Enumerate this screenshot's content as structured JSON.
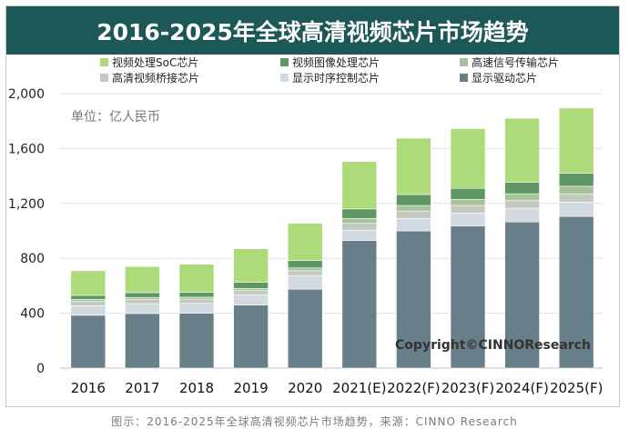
{
  "chart_data": {
    "type": "bar",
    "stacked": true,
    "title": "2016-2025年全球高清视频芯片市场趋势",
    "unit_label": "单位：亿人民币",
    "watermark": "Copyright©CINNOResearch",
    "categories": [
      "2016",
      "2017",
      "2018",
      "2019",
      "2020",
      "2021(E)",
      "2022(F)",
      "2023(F)",
      "2024(F)",
      "2025(F)"
    ],
    "ylim": [
      0,
      2000
    ],
    "yticks": [
      "0",
      "400",
      "800",
      "1,200",
      "1,600",
      "2,000"
    ],
    "ytick_values": [
      0,
      400,
      800,
      1200,
      1600,
      2000
    ],
    "grid": true,
    "legend_position": "top",
    "series": [
      {
        "name": "显示驱动芯片",
        "color": "#687f8a",
        "values": [
          385,
          398,
          400,
          460,
          575,
          930,
          1000,
          1035,
          1065,
          1105
        ]
      },
      {
        "name": "显示时序控制芯片",
        "color": "#d3d9e1",
        "values": [
          70,
          72,
          72,
          75,
          100,
          75,
          90,
          95,
          100,
          105
        ]
      },
      {
        "name": "高清视频桥接芯片",
        "color": "#c4c9bf",
        "values": [
          30,
          30,
          30,
          30,
          35,
          50,
          55,
          55,
          55,
          60
        ]
      },
      {
        "name": "高速信号传输芯片",
        "color": "#a7c29a",
        "values": [
          15,
          15,
          15,
          15,
          20,
          35,
          40,
          45,
          50,
          55
        ]
      },
      {
        "name": "视频图像处理芯片",
        "color": "#5e9764",
        "values": [
          30,
          35,
          35,
          45,
          55,
          70,
          80,
          80,
          85,
          95
        ]
      },
      {
        "name": "视频处理SoC芯片",
        "color": "#aedb79",
        "values": [
          180,
          190,
          205,
          245,
          270,
          345,
          410,
          435,
          465,
          475
        ]
      }
    ]
  },
  "legend_order": [
    5,
    4,
    3,
    2,
    1,
    0
  ],
  "caption": "图示：2016-2025年全球高清视频芯片市场趋势，来源：CINNO Research"
}
